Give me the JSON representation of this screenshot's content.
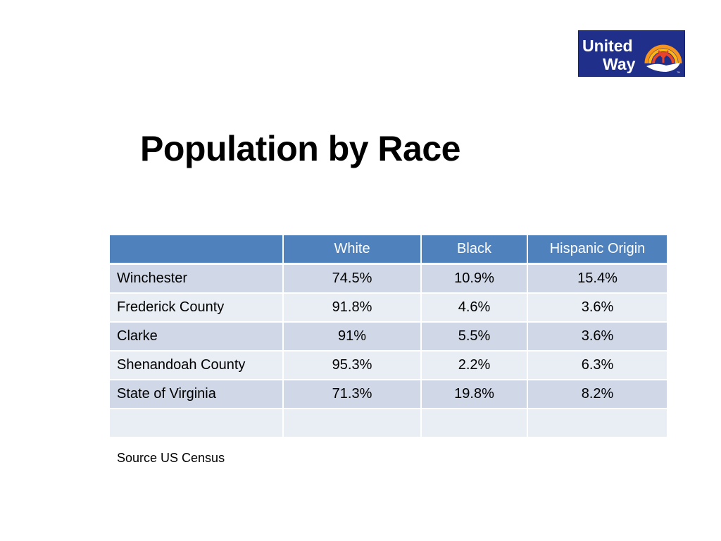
{
  "logo": {
    "text_line1": "United",
    "text_line2": "Way",
    "mark": "™",
    "colors": {
      "background": "#1f2f8a",
      "text": "#ffffff",
      "rainbow": [
        "#f7941d",
        "#fcb614",
        "#e8432b"
      ],
      "hand": "#ffffff"
    }
  },
  "title": "Population by Race",
  "table": {
    "headers": [
      "",
      "White",
      "Black",
      "Hispanic Origin"
    ],
    "rows": [
      {
        "name": "Winchester",
        "white": "74.5%",
        "black": "10.9%",
        "hispanic": "15.4%"
      },
      {
        "name": "Frederick County",
        "white": "91.8%",
        "black": "4.6%",
        "hispanic": "3.6%"
      },
      {
        "name": "Clarke",
        "white": "91%",
        "black": "5.5%",
        "hispanic": "3.6%"
      },
      {
        "name": "Shenandoah County",
        "white": "95.3%",
        "black": "2.2%",
        "hispanic": "6.3%"
      },
      {
        "name": "State of Virginia",
        "white": "71.3%",
        "black": "19.8%",
        "hispanic": "8.2%"
      },
      {
        "name": "",
        "white": "",
        "black": "",
        "hispanic": ""
      }
    ],
    "colors": {
      "header": "#4f81bd",
      "row_odd": "#d0d8e8",
      "row_even": "#e9edf4"
    }
  },
  "source": "Source US Census"
}
